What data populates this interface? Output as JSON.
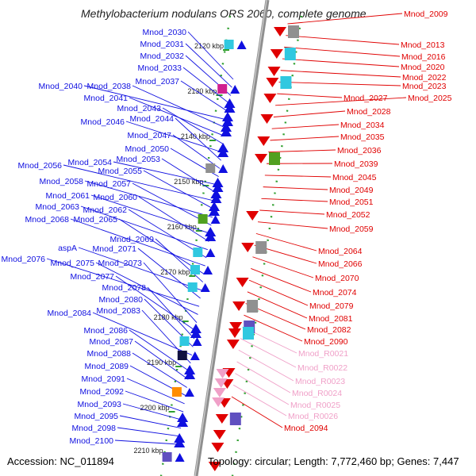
{
  "title": "Methylobacterium nodulans ORS 2060, complete genome",
  "footer": {
    "accession": "Accession: NC_011894",
    "summary": "Topology: circular; Length: 7,772,460 bp; Genes: 7,447"
  },
  "scale_labels": [
    "2120 kbp",
    "2130 kbp",
    "2140 kbp",
    "2150 kbp",
    "2160 kbp",
    "2170 kbp",
    "2180 kbp",
    "2190 kbp",
    "2200 kbp",
    "2210 kbp"
  ],
  "left_genes": [
    "Mnod_2030",
    "Mnod_2031",
    "Mnod_2032",
    "Mnod_2033",
    "Mnod_2037",
    "Mnod_2040",
    "Mnod_2038",
    "Mnod_2041",
    "Mnod_2043",
    "Mnod_2046",
    "Mnod_2044",
    "Mnod_2047",
    "Mnod_2050",
    "Mnod_2054",
    "Mnod_2053",
    "Mnod_2056",
    "Mnod_2055",
    "Mnod_2058",
    "Mnod_2057",
    "Mnod_2061",
    "Mnod_2060",
    "Mnod_2063",
    "Mnod_2062",
    "Mnod_2068",
    "Mnod_2065",
    "Mnod_2069",
    "aspA",
    "Mnod_2071",
    "Mnod_2076",
    "Mnod_2075",
    "Mnod_2073",
    "Mnod_2077",
    "Mnod_2078",
    "Mnod_2080",
    "Mnod_2084",
    "Mnod_2083",
    "Mnod_2086",
    "Mnod_2087",
    "Mnod_2088",
    "Mnod_2089",
    "Mnod_2091",
    "Mnod_2092",
    "Mnod_2093",
    "Mnod_2095",
    "Mnod_2098",
    "Mnod_2100"
  ],
  "right_genes": [
    "Mnod_2009",
    "Mnod_2013",
    "Mnod_2016",
    "Mnod_2020",
    "Mnod_2022",
    "Mnod_2023",
    "Mnod_2027",
    "Mnod_2025",
    "Mnod_2028",
    "Mnod_2034",
    "Mnod_2035",
    "Mnod_2036",
    "Mnod_2039",
    "Mnod_2045",
    "Mnod_2049",
    "Mnod_2051",
    "Mnod_2052",
    "Mnod_2059",
    "Mnod_2064",
    "Mnod_2066",
    "Mnod_2070",
    "Mnod_2074",
    "Mnod_2079",
    "Mnod_2081",
    "Mnod_2082",
    "Mnod_2090",
    "Mnod_R0021",
    "Mnod_R0022",
    "Mnod_R0023",
    "Mnod_R0024",
    "Mnod_R0025",
    "Mnod_R0026",
    "Mnod_2094"
  ],
  "colors": {
    "forward_strand": "#1010e0",
    "reverse_strand": "#e00000",
    "rna": "#f0a0c8",
    "axis": "#8a8a8a",
    "scale_dots": "#30a030"
  }
}
